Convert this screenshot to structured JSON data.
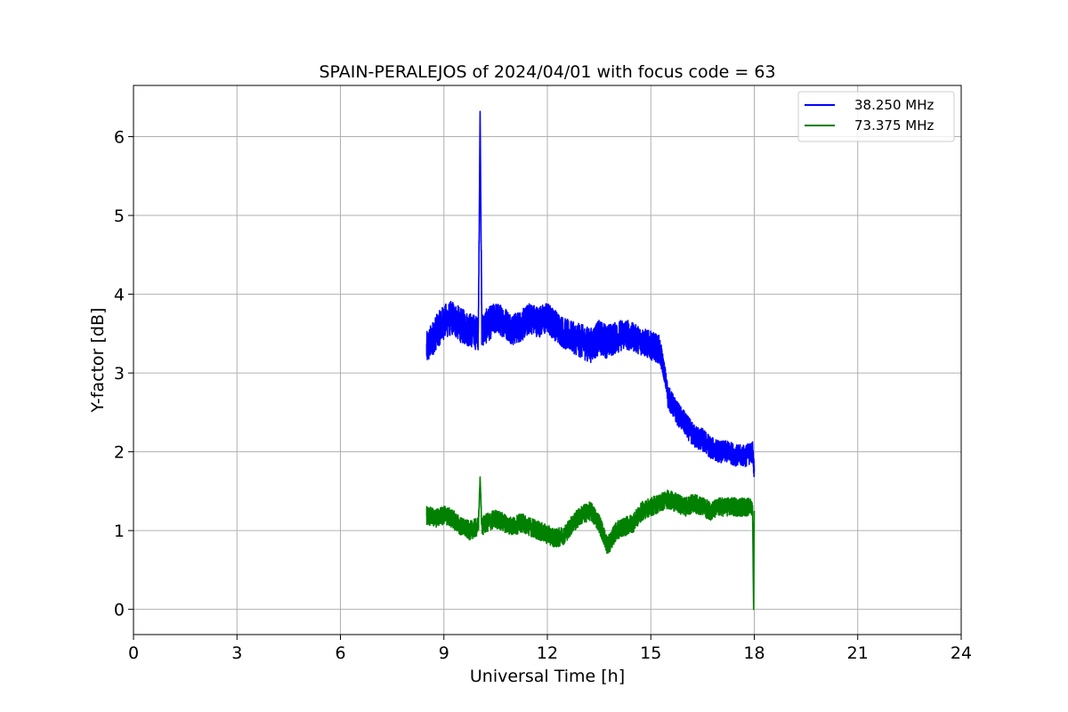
{
  "chart_data": {
    "type": "line",
    "title": "SPAIN-PERALEJOS of 2024/04/01 with focus code = 63",
    "xlabel": "Universal Time [h]",
    "ylabel": "Y-factor [dB]",
    "xlim": [
      0,
      24
    ],
    "ylim": [
      -0.32,
      6.65
    ],
    "xticks": [
      0,
      3,
      6,
      9,
      12,
      15,
      18,
      21,
      24
    ],
    "xtick_labels": [
      "0",
      "3",
      "6",
      "9",
      "12",
      "15",
      "18",
      "21",
      "24"
    ],
    "yticks": [
      0,
      1,
      2,
      3,
      4,
      5,
      6
    ],
    "ytick_labels": [
      "0",
      "1",
      "2",
      "3",
      "4",
      "5",
      "6"
    ],
    "grid": true,
    "legend_position": "top-right",
    "series": [
      {
        "name": "38.250 MHz",
        "color": "#0000ff",
        "x": [
          8.5,
          8.75,
          9.0,
          9.25,
          9.5,
          9.75,
          10.0,
          10.05,
          10.1,
          10.25,
          10.5,
          10.75,
          11.0,
          11.25,
          11.5,
          11.75,
          12.0,
          12.25,
          12.5,
          12.75,
          13.0,
          13.25,
          13.5,
          13.75,
          14.0,
          14.25,
          14.5,
          14.75,
          15.0,
          15.25,
          15.4,
          15.5,
          15.75,
          16.0,
          16.25,
          16.5,
          16.75,
          17.0,
          17.25,
          17.5,
          17.75,
          17.95,
          18.0
        ],
        "y": [
          3.3,
          3.5,
          3.65,
          3.7,
          3.6,
          3.55,
          3.5,
          6.32,
          3.55,
          3.6,
          3.7,
          3.65,
          3.55,
          3.6,
          3.7,
          3.65,
          3.7,
          3.6,
          3.5,
          3.45,
          3.4,
          3.35,
          3.45,
          3.4,
          3.45,
          3.5,
          3.45,
          3.4,
          3.35,
          3.3,
          3.0,
          2.7,
          2.5,
          2.35,
          2.2,
          2.15,
          2.05,
          2.0,
          2.0,
          1.95,
          1.95,
          2.0,
          1.75
        ],
        "noise": [
          0.22,
          0.22,
          0.22,
          0.22,
          0.22,
          0.22,
          0.22,
          0.0,
          0.22,
          0.22,
          0.2,
          0.2,
          0.2,
          0.2,
          0.2,
          0.2,
          0.2,
          0.2,
          0.2,
          0.2,
          0.22,
          0.22,
          0.22,
          0.22,
          0.2,
          0.2,
          0.18,
          0.18,
          0.18,
          0.18,
          0.12,
          0.15,
          0.15,
          0.15,
          0.15,
          0.15,
          0.14,
          0.14,
          0.14,
          0.14,
          0.14,
          0.14,
          0.1
        ]
      },
      {
        "name": "73.375 MHz",
        "color": "#008000",
        "x": [
          8.5,
          8.75,
          9.0,
          9.25,
          9.5,
          9.75,
          10.0,
          10.05,
          10.1,
          10.25,
          10.5,
          10.75,
          11.0,
          11.25,
          11.5,
          11.75,
          12.0,
          12.25,
          12.5,
          12.75,
          13.0,
          13.25,
          13.5,
          13.75,
          14.0,
          14.25,
          14.5,
          14.75,
          15.0,
          15.25,
          15.5,
          15.75,
          16.0,
          16.25,
          16.5,
          16.75,
          17.0,
          17.25,
          17.5,
          17.75,
          17.95,
          17.98,
          18.0
        ],
        "y": [
          1.2,
          1.15,
          1.2,
          1.15,
          1.05,
          1.0,
          1.05,
          1.68,
          1.05,
          1.1,
          1.15,
          1.1,
          1.05,
          1.1,
          1.05,
          1.0,
          0.95,
          0.9,
          0.95,
          1.1,
          1.2,
          1.25,
          1.1,
          0.8,
          1.0,
          1.05,
          1.1,
          1.25,
          1.3,
          1.35,
          1.4,
          1.35,
          1.3,
          1.35,
          1.3,
          1.25,
          1.3,
          1.3,
          1.3,
          1.3,
          1.3,
          0.0,
          1.25
        ],
        "noise": [
          0.12,
          0.12,
          0.12,
          0.12,
          0.12,
          0.12,
          0.12,
          0.0,
          0.12,
          0.12,
          0.12,
          0.12,
          0.12,
          0.12,
          0.12,
          0.12,
          0.12,
          0.12,
          0.12,
          0.12,
          0.12,
          0.12,
          0.12,
          0.12,
          0.12,
          0.12,
          0.12,
          0.12,
          0.12,
          0.12,
          0.12,
          0.12,
          0.12,
          0.12,
          0.12,
          0.12,
          0.12,
          0.12,
          0.12,
          0.12,
          0.1,
          0.0,
          0.1
        ]
      }
    ]
  }
}
